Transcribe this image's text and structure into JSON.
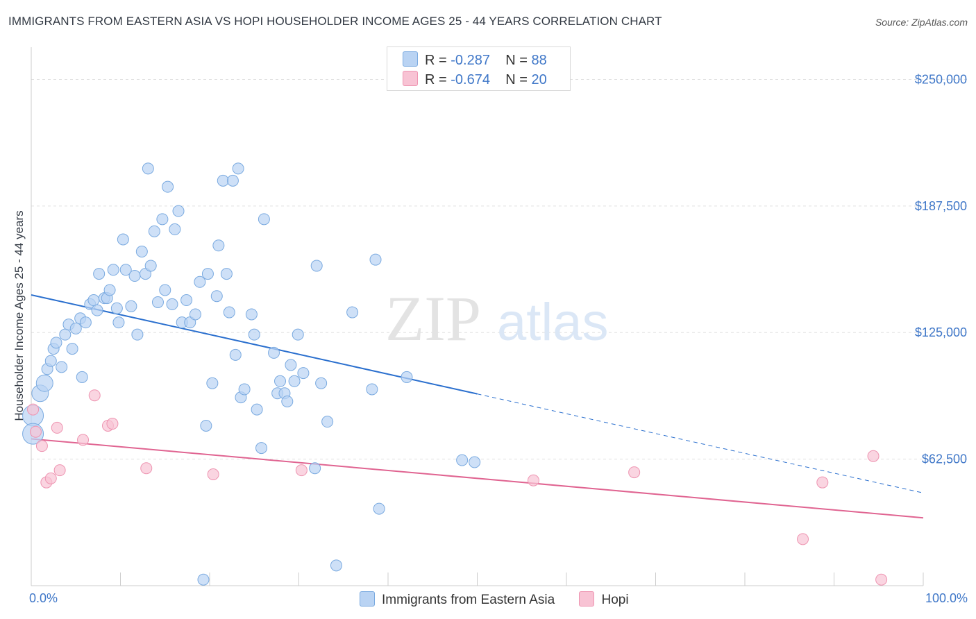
{
  "title": "IMMIGRANTS FROM EASTERN ASIA VS HOPI HOUSEHOLDER INCOME AGES 25 - 44 YEARS CORRELATION CHART",
  "source": "Source: ZipAtlas.com",
  "watermark": {
    "zip": "ZIP",
    "atlas": "atlas"
  },
  "legend": {
    "rows": [
      {
        "r_label": "R = ",
        "r_value": "-0.287",
        "n_label": "N = ",
        "n_value": "88"
      },
      {
        "r_label": "R = ",
        "r_value": "-0.674",
        "n_label": "N = ",
        "n_value": "20"
      }
    ]
  },
  "colors": {
    "series1_fill": "#b9d3f3",
    "series1_stroke": "#7aaae0",
    "series1_line": "#2a6fce",
    "series2_fill": "#f8c3d4",
    "series2_stroke": "#ee94b1",
    "series2_line": "#e06491",
    "tick_text": "#3f77c8",
    "grid": "#e0e0e0"
  },
  "chart_data": {
    "type": "scatter",
    "title": "IMMIGRANTS FROM EASTERN ASIA VS HOPI HOUSEHOLDER INCOME AGES 25 - 44 YEARS CORRELATION CHART",
    "xlabel": "",
    "ylabel": "Householder Income Ages 25 - 44 years",
    "xlim": [
      0,
      100
    ],
    "ylim": [
      0,
      262500
    ],
    "x_tick_labels": [
      "0.0%",
      "100.0%"
    ],
    "y_ticks": [
      62500,
      125000,
      187500,
      250000
    ],
    "y_tick_labels": [
      "$62,500",
      "$125,000",
      "$187,500",
      "$250,000"
    ],
    "grid": true,
    "legend_position": "top-center",
    "series": [
      {
        "name": "Immigrants from Eastern Asia",
        "r": -0.287,
        "n": 88,
        "trend": {
          "x0": 0,
          "y0": 143600,
          "x1": 50,
          "y1": 94700,
          "dashed_to_x": 100,
          "dashed_to_y": 45800
        },
        "points": [
          [
            0.2,
            84000,
            "big"
          ],
          [
            0.2,
            75000,
            "big"
          ],
          [
            1.0,
            95000,
            "mid"
          ],
          [
            1.5,
            100000,
            "mid"
          ],
          [
            1.8,
            107000
          ],
          [
            2.2,
            111000
          ],
          [
            2.5,
            117000
          ],
          [
            2.8,
            120000
          ],
          [
            3.4,
            108000
          ],
          [
            3.8,
            124000
          ],
          [
            4.2,
            129000
          ],
          [
            4.6,
            117000
          ],
          [
            5.0,
            127000
          ],
          [
            5.5,
            132000
          ],
          [
            5.7,
            103000
          ],
          [
            6.1,
            130000
          ],
          [
            6.6,
            139000
          ],
          [
            7.0,
            141000
          ],
          [
            7.4,
            136000
          ],
          [
            7.6,
            154000
          ],
          [
            8.2,
            142000
          ],
          [
            8.5,
            142000
          ],
          [
            8.8,
            146000
          ],
          [
            9.2,
            156000
          ],
          [
            9.6,
            137000
          ],
          [
            9.8,
            130000
          ],
          [
            10.3,
            171000
          ],
          [
            10.6,
            156000
          ],
          [
            11.2,
            138000
          ],
          [
            11.6,
            153000
          ],
          [
            11.9,
            124000
          ],
          [
            12.4,
            165000
          ],
          [
            12.8,
            154000
          ],
          [
            13.1,
            206000
          ],
          [
            13.4,
            158000
          ],
          [
            13.8,
            175000
          ],
          [
            14.2,
            140000
          ],
          [
            14.7,
            181000
          ],
          [
            15.0,
            146000
          ],
          [
            15.3,
            197000
          ],
          [
            15.8,
            139000
          ],
          [
            16.1,
            176000
          ],
          [
            16.5,
            185000
          ],
          [
            16.9,
            130000
          ],
          [
            17.4,
            141000
          ],
          [
            17.8,
            130000
          ],
          [
            18.4,
            134000
          ],
          [
            18.9,
            150000
          ],
          [
            19.3,
            3000
          ],
          [
            19.6,
            79000
          ],
          [
            19.8,
            154000
          ],
          [
            20.3,
            100000
          ],
          [
            20.8,
            143000
          ],
          [
            21.0,
            168000
          ],
          [
            21.5,
            200000
          ],
          [
            21.9,
            154000
          ],
          [
            22.2,
            135000
          ],
          [
            22.6,
            200000
          ],
          [
            22.9,
            114000
          ],
          [
            23.2,
            206000
          ],
          [
            23.5,
            93000
          ],
          [
            23.9,
            97000
          ],
          [
            24.7,
            134000
          ],
          [
            25.0,
            124000
          ],
          [
            25.3,
            87000
          ],
          [
            25.8,
            68000
          ],
          [
            26.1,
            181000
          ],
          [
            27.2,
            115000
          ],
          [
            27.6,
            95000
          ],
          [
            27.9,
            101000
          ],
          [
            28.4,
            95000
          ],
          [
            28.7,
            91000
          ],
          [
            29.1,
            109000
          ],
          [
            29.5,
            101000
          ],
          [
            29.9,
            124000
          ],
          [
            30.5,
            105000
          ],
          [
            31.8,
            58000
          ],
          [
            32.0,
            158000
          ],
          [
            32.5,
            100000
          ],
          [
            33.2,
            81000
          ],
          [
            34.2,
            10000
          ],
          [
            36.0,
            135000
          ],
          [
            38.2,
            97000
          ],
          [
            38.6,
            161000
          ],
          [
            39.0,
            38000
          ],
          [
            42.1,
            103000
          ],
          [
            48.3,
            62000
          ],
          [
            49.7,
            61000
          ]
        ]
      },
      {
        "name": "Hopi",
        "r": -0.674,
        "n": 20,
        "trend": {
          "x0": 0,
          "y0": 72500,
          "x1": 100,
          "y1": 33500
        },
        "points": [
          [
            0.2,
            87000
          ],
          [
            0.5,
            76000
          ],
          [
            1.2,
            69000
          ],
          [
            1.7,
            51000
          ],
          [
            2.2,
            53000
          ],
          [
            2.9,
            78000
          ],
          [
            3.2,
            57000
          ],
          [
            5.8,
            72000
          ],
          [
            7.1,
            94000
          ],
          [
            8.6,
            79000
          ],
          [
            9.1,
            80000
          ],
          [
            12.9,
            58000
          ],
          [
            20.4,
            55000
          ],
          [
            30.3,
            57000
          ],
          [
            56.3,
            52000
          ],
          [
            67.6,
            56000
          ],
          [
            88.7,
            51000
          ],
          [
            86.5,
            23000
          ],
          [
            94.4,
            64000
          ],
          [
            95.3,
            3000
          ]
        ]
      }
    ]
  }
}
